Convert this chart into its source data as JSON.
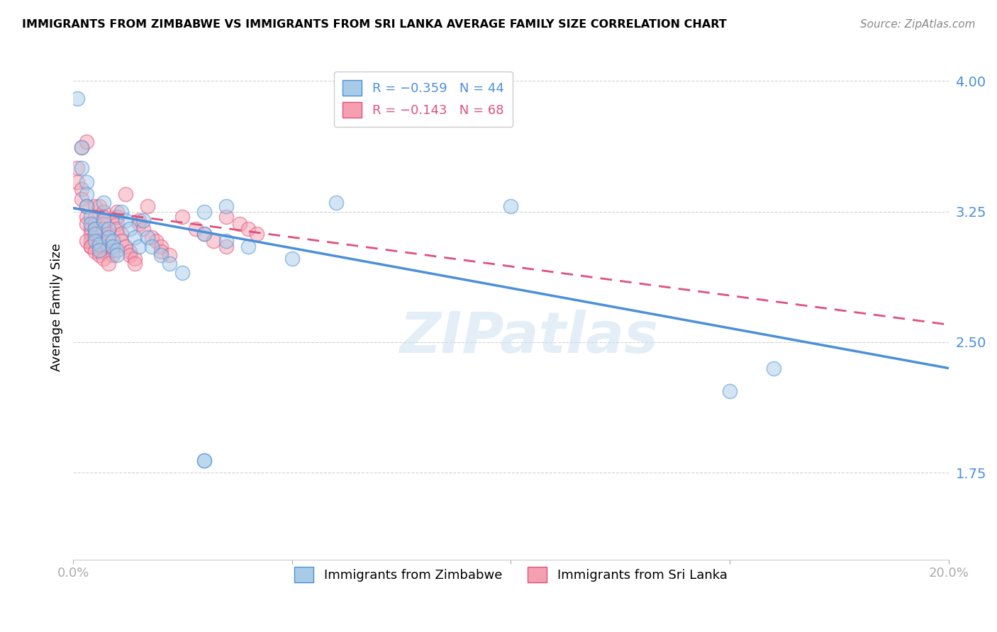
{
  "title": "IMMIGRANTS FROM ZIMBABWE VS IMMIGRANTS FROM SRI LANKA AVERAGE FAMILY SIZE CORRELATION CHART",
  "source": "Source: ZipAtlas.com",
  "ylabel": "Average Family Size",
  "xlim": [
    0.0,
    0.2
  ],
  "ylim": [
    1.25,
    4.15
  ],
  "yticks": [
    1.75,
    2.5,
    3.25,
    4.0
  ],
  "xticks": [
    0.0,
    0.05,
    0.1,
    0.15,
    0.2
  ],
  "xtick_labels": [
    "0.0%",
    "",
    "",
    "",
    "20.0%"
  ],
  "watermark": "ZIPatlas",
  "color_zimbabwe": "#a8cce8",
  "color_sri_lanka": "#f5a0b0",
  "color_line_zimbabwe": "#4a90d9",
  "color_line_sri_lanka": "#e0507a",
  "zimbabwe_x": [
    0.001,
    0.002,
    0.002,
    0.003,
    0.003,
    0.003,
    0.004,
    0.004,
    0.005,
    0.005,
    0.005,
    0.006,
    0.006,
    0.007,
    0.007,
    0.008,
    0.008,
    0.009,
    0.009,
    0.01,
    0.01,
    0.011,
    0.012,
    0.013,
    0.014,
    0.015,
    0.016,
    0.017,
    0.018,
    0.02,
    0.022,
    0.025,
    0.03,
    0.035,
    0.04,
    0.05,
    0.06,
    0.03,
    0.035,
    0.1,
    0.15,
    0.16,
    0.03,
    0.03
  ],
  "zimbabwe_y": [
    3.9,
    3.62,
    3.5,
    3.42,
    3.35,
    3.28,
    3.22,
    3.18,
    3.15,
    3.12,
    3.08,
    3.06,
    3.03,
    3.3,
    3.2,
    3.15,
    3.1,
    3.08,
    3.05,
    3.03,
    3.0,
    3.25,
    3.2,
    3.15,
    3.1,
    3.05,
    3.2,
    3.1,
    3.05,
    3.0,
    2.95,
    2.9,
    3.12,
    3.08,
    3.05,
    2.98,
    3.3,
    3.25,
    3.28,
    3.28,
    2.22,
    2.35,
    1.82,
    1.82
  ],
  "sri_lanka_x": [
    0.001,
    0.001,
    0.002,
    0.002,
    0.002,
    0.003,
    0.003,
    0.003,
    0.003,
    0.004,
    0.004,
    0.004,
    0.004,
    0.005,
    0.005,
    0.005,
    0.005,
    0.005,
    0.006,
    0.006,
    0.006,
    0.006,
    0.007,
    0.007,
    0.007,
    0.007,
    0.008,
    0.008,
    0.008,
    0.009,
    0.009,
    0.01,
    0.01,
    0.01,
    0.01,
    0.011,
    0.011,
    0.012,
    0.012,
    0.013,
    0.013,
    0.014,
    0.014,
    0.015,
    0.015,
    0.016,
    0.017,
    0.018,
    0.019,
    0.02,
    0.02,
    0.022,
    0.025,
    0.028,
    0.03,
    0.032,
    0.035,
    0.038,
    0.04,
    0.042,
    0.003,
    0.004,
    0.005,
    0.006,
    0.007,
    0.008,
    0.035
  ],
  "sri_lanka_y": [
    3.5,
    3.42,
    3.38,
    3.32,
    3.62,
    3.28,
    3.22,
    3.65,
    3.18,
    3.15,
    3.12,
    3.08,
    3.05,
    3.28,
    3.22,
    3.18,
    3.15,
    3.1,
    3.08,
    3.05,
    3.02,
    3.28,
    3.25,
    3.22,
    3.18,
    3.15,
    3.12,
    3.08,
    3.05,
    3.03,
    3.0,
    3.25,
    3.22,
    3.18,
    3.15,
    3.12,
    3.08,
    3.35,
    3.05,
    3.02,
    3.0,
    2.98,
    2.95,
    3.2,
    3.18,
    3.15,
    3.28,
    3.1,
    3.08,
    3.05,
    3.02,
    3.0,
    3.22,
    3.15,
    3.12,
    3.08,
    3.22,
    3.18,
    3.15,
    3.12,
    3.08,
    3.05,
    3.02,
    3.0,
    2.98,
    2.95,
    3.05
  ],
  "zim_line_x0": 0.0,
  "zim_line_x1": 0.2,
  "zim_line_y0": 3.27,
  "zim_line_y1": 2.35,
  "sri_line_x0": 0.0,
  "sri_line_x1": 0.2,
  "sri_line_y0": 3.27,
  "sri_line_y1": 2.6
}
